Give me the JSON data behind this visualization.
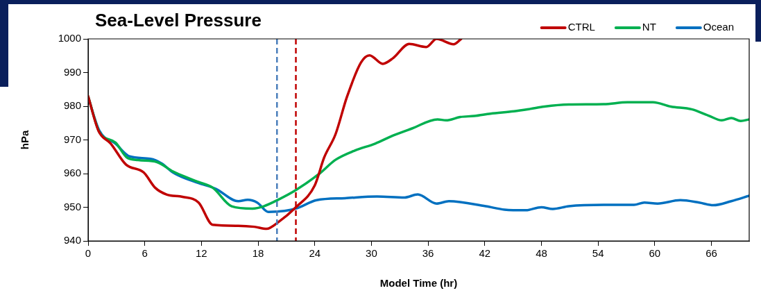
{
  "chart_data": {
    "type": "line",
    "title": "Sea-Level Pressure",
    "xlabel": "Model Time (hr)",
    "ylabel": "hPa",
    "xlim": [
      0,
      70
    ],
    "xticks": [
      0,
      6,
      12,
      18,
      24,
      30,
      36,
      42,
      48,
      54,
      60,
      66
    ],
    "ylim": [
      940,
      1000
    ],
    "yticks": [
      940,
      950,
      960,
      970,
      980,
      990,
      1000
    ],
    "grid": false,
    "legend": "top right",
    "marker": "none",
    "line_style": "solid",
    "ref_lines": [
      {
        "axis": "x",
        "value": 20,
        "color": "#4a7ebb",
        "line_style": "dashed"
      },
      {
        "axis": "x",
        "value": 22,
        "color": "#c00000",
        "line_style": "dashed"
      }
    ],
    "series": [
      {
        "name": "CTRL",
        "color": "#c00000",
        "x": [
          0,
          1.1,
          2.4,
          4,
          5.9,
          7.1,
          8.3,
          10,
          11.7,
          13.2,
          15.9,
          17.6,
          18.9,
          20.1,
          22,
          24,
          25,
          26.2,
          27.4,
          28.9,
          29.8,
          31.2,
          32.3,
          34,
          35.8,
          36.9,
          38.7,
          39.5
        ],
        "values": [
          983,
          972.7,
          968.9,
          962.7,
          960.3,
          955.8,
          953.8,
          953.1,
          951.4,
          944.8,
          944.5,
          944.2,
          943.6,
          945.5,
          950,
          956.5,
          964.8,
          971.7,
          982.7,
          993,
          995.1,
          992.6,
          994.3,
          998.5,
          997.6,
          1000,
          998.4,
          1000
        ]
      },
      {
        "name": "NT",
        "color": "#00b050",
        "x": [
          0,
          1.2,
          2.9,
          4.1,
          5.3,
          7.3,
          9,
          11.7,
          13.2,
          15.2,
          17.4,
          18.6,
          20.1,
          22,
          24.5,
          26.2,
          28.2,
          30.4,
          32.3,
          34.3,
          37,
          37.9,
          39.4,
          40.9,
          42.6,
          45.1,
          46.8,
          48.3,
          50.9,
          54.6,
          57.1,
          59.8,
          61.7,
          63.9,
          65.7,
          67.1,
          68.1,
          69.1,
          70
        ],
        "values": [
          983,
          972.3,
          969.2,
          964.8,
          964,
          963.4,
          960.6,
          957.5,
          955.8,
          950.3,
          949.6,
          950.3,
          952.2,
          955.1,
          960,
          964.1,
          966.8,
          968.9,
          971.3,
          973.4,
          976.1,
          975.8,
          976.8,
          977.1,
          977.8,
          978.5,
          979.2,
          979.9,
          980.5,
          980.6,
          981.2,
          981.2,
          979.9,
          979.1,
          977.2,
          975.8,
          976.5,
          975.6,
          976.1
        ]
      },
      {
        "name": "Ocean",
        "color": "#0070c0",
        "x": [
          0,
          1.2,
          2.9,
          4.4,
          6.6,
          7.8,
          9,
          11.7,
          13.5,
          15.9,
          16.9,
          17.9,
          19.1,
          20.8,
          22,
          24.2,
          27.2,
          30.6,
          33.5,
          34.9,
          36.9,
          38.2,
          42.1,
          44.1,
          46.3,
          48,
          49.2,
          50.9,
          54.6,
          57.8,
          58.9,
          60.3,
          62.7,
          64.7,
          66.2,
          68.1,
          70
        ],
        "values": [
          982.7,
          972.7,
          968.9,
          965.1,
          964.4,
          963,
          960.3,
          957.2,
          955.5,
          951.8,
          952.2,
          951.4,
          948.6,
          948.9,
          949.6,
          952.1,
          952.7,
          953.2,
          952.9,
          953.8,
          951.1,
          951.8,
          950.3,
          949.3,
          949.1,
          950,
          949.5,
          950.3,
          950.7,
          950.7,
          951.4,
          951.1,
          952.1,
          951.4,
          950.6,
          951.8,
          953.4
        ]
      }
    ]
  }
}
